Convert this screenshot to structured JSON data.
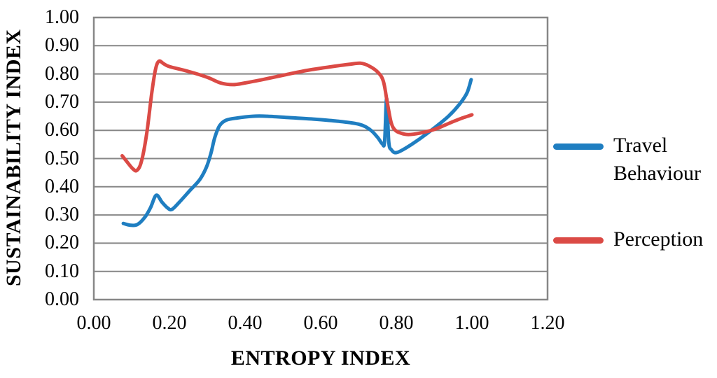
{
  "chart_data": {
    "type": "line",
    "title": "",
    "xlabel": "ENTROPY INDEX",
    "ylabel": "SUSTAINABILITY INDEX",
    "xlim": [
      0.0,
      1.2
    ],
    "ylim": [
      0.0,
      1.0
    ],
    "x_tick_labels": [
      "0.00",
      "0.20",
      "0.40",
      "0.60",
      "0.80",
      "1.00",
      "1.20"
    ],
    "y_tick_labels": [
      "0.00",
      "0.10",
      "0.20",
      "0.30",
      "0.40",
      "0.50",
      "0.60",
      "0.70",
      "0.80",
      "0.90",
      "1.00"
    ],
    "grid": "horizontal",
    "legend_position": "right",
    "axis_color": "#878787",
    "series": [
      {
        "name": "Travel Behaviour",
        "color": "#1f7ec1",
        "points": [
          [
            0.078,
            0.27
          ],
          [
            0.095,
            0.264
          ],
          [
            0.115,
            0.266
          ],
          [
            0.135,
            0.292
          ],
          [
            0.15,
            0.326
          ],
          [
            0.165,
            0.37
          ],
          [
            0.18,
            0.346
          ],
          [
            0.195,
            0.325
          ],
          [
            0.207,
            0.32
          ],
          [
            0.228,
            0.348
          ],
          [
            0.255,
            0.388
          ],
          [
            0.28,
            0.425
          ],
          [
            0.298,
            0.47
          ],
          [
            0.31,
            0.52
          ],
          [
            0.32,
            0.575
          ],
          [
            0.333,
            0.617
          ],
          [
            0.35,
            0.636
          ],
          [
            0.38,
            0.644
          ],
          [
            0.42,
            0.65
          ],
          [
            0.46,
            0.65
          ],
          [
            0.52,
            0.645
          ],
          [
            0.58,
            0.64
          ],
          [
            0.64,
            0.633
          ],
          [
            0.7,
            0.622
          ],
          [
            0.73,
            0.603
          ],
          [
            0.75,
            0.576
          ],
          [
            0.763,
            0.552
          ],
          [
            0.769,
            0.56
          ],
          [
            0.7745,
            0.713
          ],
          [
            0.78,
            0.56
          ],
          [
            0.787,
            0.531
          ],
          [
            0.8,
            0.521
          ],
          [
            0.826,
            0.538
          ],
          [
            0.862,
            0.57
          ],
          [
            0.9,
            0.608
          ],
          [
            0.938,
            0.65
          ],
          [
            0.968,
            0.694
          ],
          [
            0.987,
            0.733
          ],
          [
            0.998,
            0.78
          ]
        ]
      },
      {
        "name": "Perception",
        "color": "#db4a45",
        "points": [
          [
            0.075,
            0.51
          ],
          [
            0.088,
            0.488
          ],
          [
            0.103,
            0.464
          ],
          [
            0.114,
            0.458
          ],
          [
            0.126,
            0.49
          ],
          [
            0.14,
            0.59
          ],
          [
            0.153,
            0.73
          ],
          [
            0.163,
            0.815
          ],
          [
            0.172,
            0.845
          ],
          [
            0.185,
            0.836
          ],
          [
            0.2,
            0.826
          ],
          [
            0.25,
            0.809
          ],
          [
            0.3,
            0.788
          ],
          [
            0.335,
            0.768
          ],
          [
            0.368,
            0.762
          ],
          [
            0.4,
            0.768
          ],
          [
            0.45,
            0.781
          ],
          [
            0.51,
            0.798
          ],
          [
            0.57,
            0.814
          ],
          [
            0.63,
            0.826
          ],
          [
            0.675,
            0.834
          ],
          [
            0.705,
            0.838
          ],
          [
            0.728,
            0.828
          ],
          [
            0.752,
            0.805
          ],
          [
            0.766,
            0.773
          ],
          [
            0.776,
            0.7
          ],
          [
            0.786,
            0.63
          ],
          [
            0.796,
            0.602
          ],
          [
            0.812,
            0.59
          ],
          [
            0.832,
            0.585
          ],
          [
            0.862,
            0.59
          ],
          [
            0.9,
            0.603
          ],
          [
            0.945,
            0.628
          ],
          [
            0.975,
            0.644
          ],
          [
            1.0,
            0.655
          ]
        ]
      }
    ]
  }
}
